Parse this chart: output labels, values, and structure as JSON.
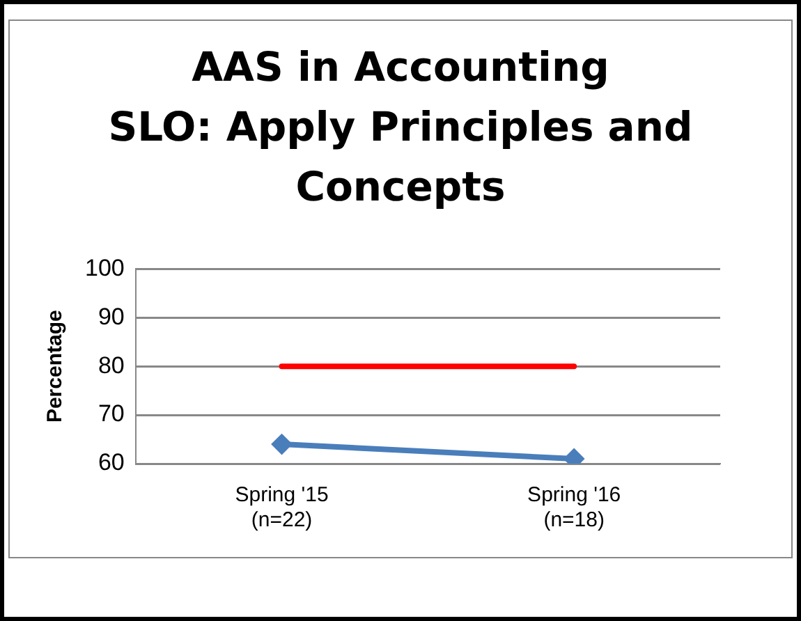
{
  "chart_data": {
    "type": "line",
    "title": "AAS in Accounting\nSLO:  Apply Principles and\nConcepts",
    "ylabel": "Percentage",
    "categories": [
      "Spring '15\n(n=22)",
      "Spring '16\n(n=18)"
    ],
    "series": [
      {
        "color": "#ff0000",
        "values": [
          80,
          80
        ],
        "marker": "none"
      },
      {
        "color": "#4a7ebb",
        "values": [
          64,
          61
        ],
        "marker": "diamond"
      }
    ],
    "ylim": [
      60,
      100
    ],
    "yticks": [
      60,
      70,
      80,
      90,
      100
    ],
    "grid": "y",
    "legend": false
  }
}
